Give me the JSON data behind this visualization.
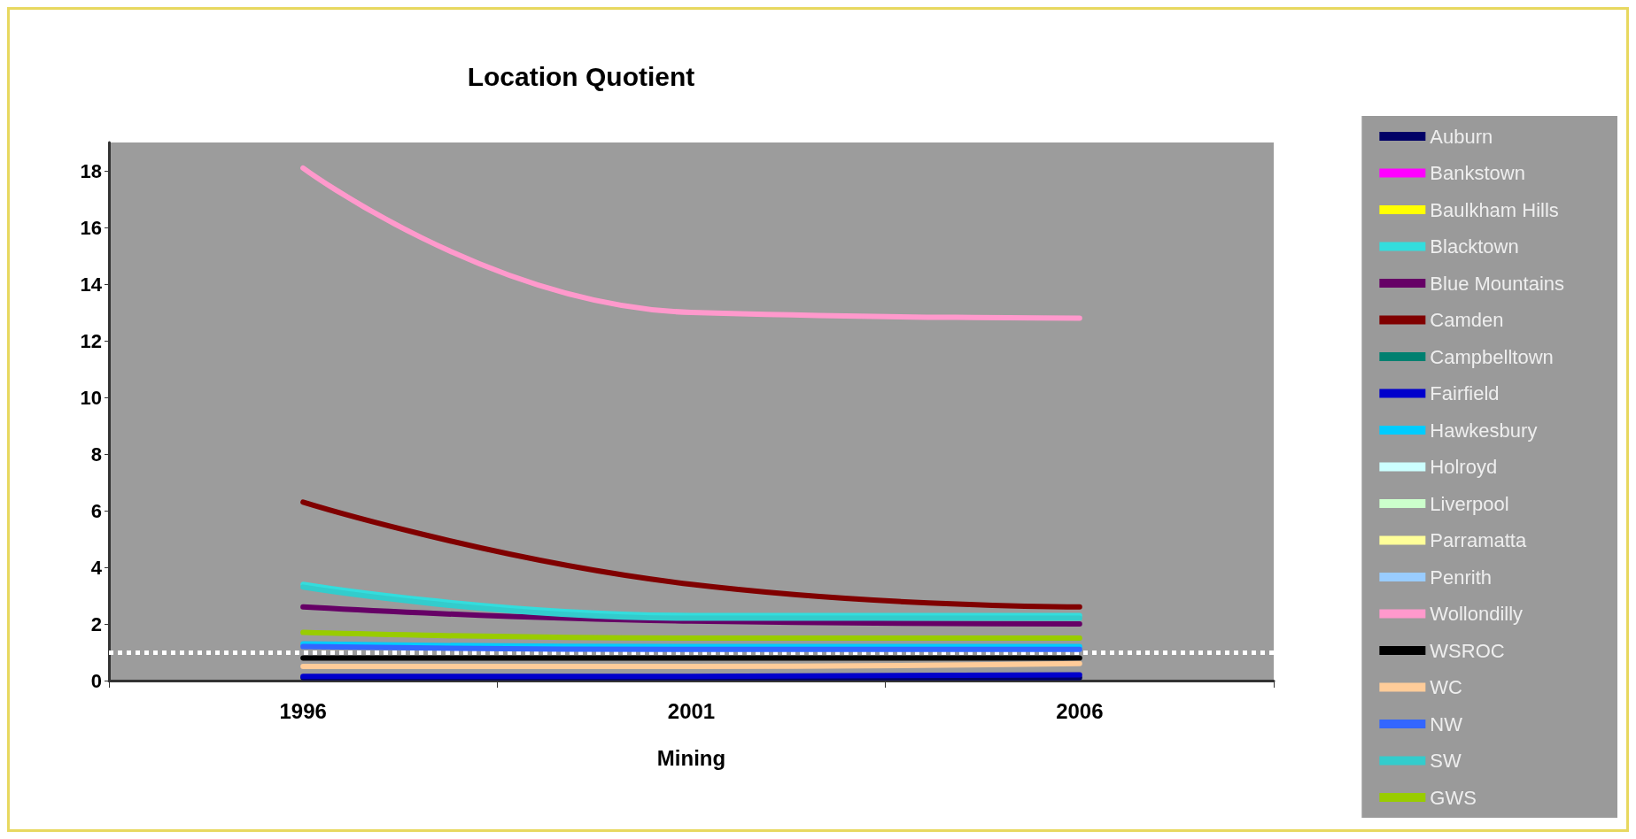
{
  "chart_data": {
    "type": "line",
    "title": "Location Quotient",
    "xlabel": "Mining",
    "categories": [
      "1996",
      "2001",
      "2006"
    ],
    "ylim": [
      0,
      19
    ],
    "yticks": [
      0,
      2,
      4,
      6,
      8,
      10,
      12,
      14,
      16,
      18
    ],
    "grid": false,
    "legend": "right",
    "marker": "none",
    "line_style": "solid",
    "ref_lines": [
      {
        "axis": "y",
        "value": 1,
        "color": "#ffffff",
        "line_style": "dotted"
      }
    ],
    "series": [
      {
        "name": "Auburn",
        "color": "#000066",
        "values": [
          0.1,
          0.1,
          0.1
        ]
      },
      {
        "name": "Bankstown",
        "color": "#ff00ff",
        "values": [
          null,
          null,
          null
        ]
      },
      {
        "name": "Baulkham Hills",
        "color": "#ffff00",
        "values": [
          null,
          null,
          null
        ]
      },
      {
        "name": "Blacktown",
        "color": "#33dddd",
        "values": [
          3.4,
          2.3,
          2.3
        ]
      },
      {
        "name": "Blue Mountains",
        "color": "#660066",
        "values": [
          2.6,
          2.1,
          2.0
        ]
      },
      {
        "name": "Camden",
        "color": "#800000",
        "values": [
          6.3,
          3.4,
          2.6
        ]
      },
      {
        "name": "Campbelltown",
        "color": "#008070",
        "values": [
          null,
          null,
          null
        ]
      },
      {
        "name": "Fairfield",
        "color": "#0000cc",
        "values": [
          0.15,
          0.15,
          0.2
        ]
      },
      {
        "name": "Hawkesbury",
        "color": "#00ccff",
        "values": [
          1.3,
          1.2,
          1.2
        ]
      },
      {
        "name": "Holroyd",
        "color": "#ccffff",
        "values": [
          null,
          null,
          null
        ]
      },
      {
        "name": "Liverpool",
        "color": "#ccffcc",
        "values": [
          null,
          null,
          null
        ]
      },
      {
        "name": "Parramatta",
        "color": "#ffff99",
        "values": [
          null,
          null,
          null
        ]
      },
      {
        "name": "Penrith",
        "color": "#99ccff",
        "values": [
          null,
          null,
          null
        ]
      },
      {
        "name": "Wollondilly",
        "color": "#ff99cc",
        "values": [
          18.1,
          13.0,
          12.8
        ]
      },
      {
        "name": "WSROC",
        "color": "#000000",
        "values": [
          0.8,
          0.8,
          0.8
        ]
      },
      {
        "name": "WC",
        "color": "#ffcc99",
        "values": [
          0.5,
          0.5,
          0.6
        ]
      },
      {
        "name": "NW",
        "color": "#3366ff",
        "values": [
          1.2,
          1.1,
          1.1
        ]
      },
      {
        "name": "SW",
        "color": "#33cccc",
        "values": [
          3.3,
          2.2,
          2.2
        ]
      },
      {
        "name": "GWS",
        "color": "#99cc00",
        "values": [
          1.7,
          1.5,
          1.5
        ]
      }
    ]
  }
}
